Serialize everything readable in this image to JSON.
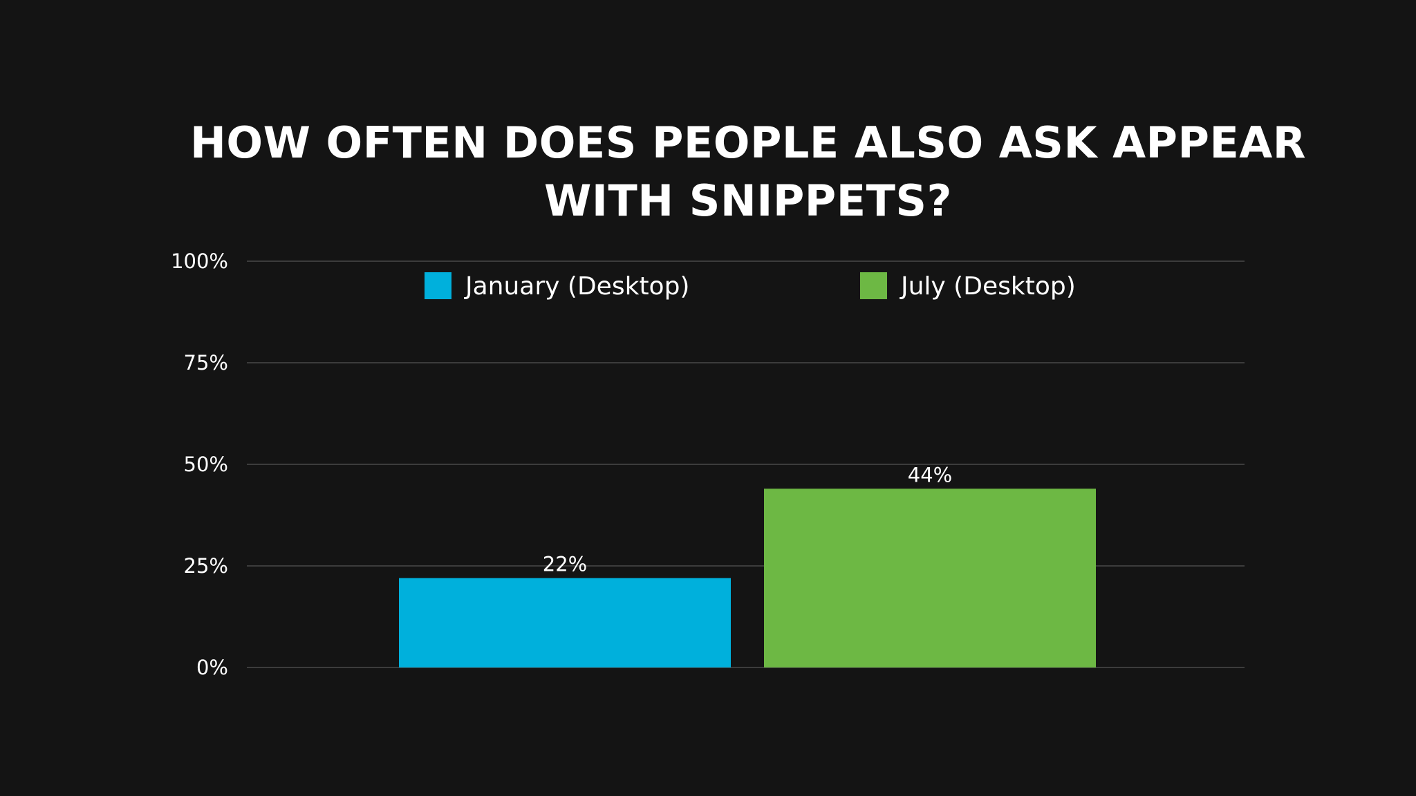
{
  "chart_data": {
    "type": "bar",
    "title_lines": [
      "HOW OFTEN DOES PEOPLE ALSO ASK APPEAR",
      "WITH SNIPPETS?"
    ],
    "categories": [
      "January (Desktop)",
      "July (Desktop)"
    ],
    "values": [
      22,
      44
    ],
    "data_labels": [
      "22%",
      "44%"
    ],
    "colors": [
      "#00b0dc",
      "#6db844"
    ],
    "ylim": [
      0,
      100
    ],
    "yticks": [
      0,
      25,
      50,
      75,
      100
    ],
    "ytick_labels": [
      "0%",
      "25%",
      "50%",
      "75%",
      "100%"
    ],
    "grid": true,
    "legend_position": "top",
    "xlabel": "",
    "ylabel": ""
  }
}
